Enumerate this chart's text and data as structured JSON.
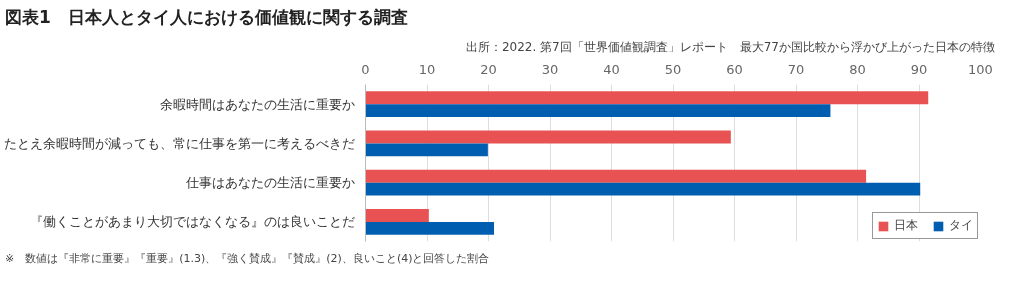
{
  "chart_data": {
    "type": "bar",
    "orientation": "horizontal",
    "title": "図表1　日本人とタイ人における価値観に関する調査",
    "categories": [
      "余暇時間はあなたの生活に重要か",
      "たとえ余暇時間が減っても、常に仕事を第一に考えるべきだ",
      "仕事はあなたの生活に重要か",
      "『働くことがあまり大切ではなくなる』のは良いことだ"
    ],
    "series": [
      {
        "name": "日本",
        "color": "#e85252",
        "values": [
          91.5,
          59.4,
          81.4,
          10.3
        ]
      },
      {
        "name": "タイ",
        "color": "#005eb0",
        "values": [
          75.6,
          19.9,
          90.2,
          20.9
        ]
      }
    ],
    "xlim": [
      0,
      100
    ],
    "xticks": [
      0,
      10,
      20,
      30,
      40,
      50,
      60,
      70,
      80,
      90,
      100
    ],
    "grid": "x",
    "legend": "bottom right",
    "annotations": [
      "出所：2022. 第7回「世界価値観調査」レポート　最大77か国比較から浮かび上がった日本の特徴",
      "※　数値は『非常に重要』『重要』(1.3)、『強く賛成』『賛成』(2)、良いこと(4)と回答した割合"
    ]
  }
}
